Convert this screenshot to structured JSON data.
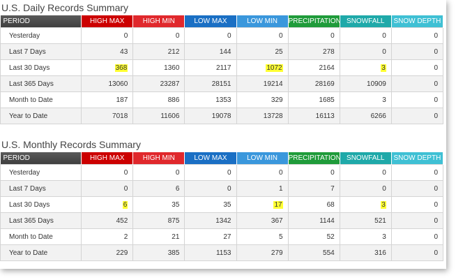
{
  "colors": {
    "period": "#4d4d4d",
    "high_max": "#cc0000",
    "high_min": "#e0282c",
    "low_max": "#1a6fc4",
    "low_min": "#3a97dc",
    "precipitation": "#1f9b3a",
    "snowfall": "#1fa9a9",
    "snow_depth": "#3fc0d4",
    "highlight": "#ffff33"
  },
  "headers": [
    "PERIOD",
    "HIGH MAX",
    "HIGH MIN",
    "LOW MAX",
    "LOW MIN",
    "PRECIPITATION",
    "SNOWFALL",
    "SNOW DEPTH"
  ],
  "daily": {
    "title": "U.S. Daily Records Summary",
    "rows": [
      {
        "label": "Yesterday",
        "values": [
          "0",
          "0",
          "0",
          "0",
          "0",
          "0",
          "0"
        ]
      },
      {
        "label": "Last 7 Days",
        "values": [
          "43",
          "212",
          "144",
          "25",
          "278",
          "0",
          "0"
        ]
      },
      {
        "label": "Last 30 Days",
        "values": [
          "368",
          "1360",
          "2117",
          "1072",
          "2164",
          "3",
          "0"
        ]
      },
      {
        "label": "Last 365 Days",
        "values": [
          "13060",
          "23287",
          "28151",
          "19214",
          "28169",
          "10909",
          "0"
        ]
      },
      {
        "label": "Month to Date",
        "values": [
          "187",
          "886",
          "1353",
          "329",
          "1685",
          "3",
          "0"
        ]
      },
      {
        "label": "Year to Date",
        "values": [
          "7018",
          "11606",
          "19078",
          "13728",
          "16113",
          "6266",
          "0"
        ]
      }
    ]
  },
  "monthly": {
    "title": "U.S. Monthly Records Summary",
    "rows": [
      {
        "label": "Yesterday",
        "values": [
          "0",
          "0",
          "0",
          "0",
          "0",
          "0",
          "0"
        ]
      },
      {
        "label": "Last 7 Days",
        "values": [
          "0",
          "6",
          "0",
          "1",
          "7",
          "0",
          "0"
        ]
      },
      {
        "label": "Last 30 Days",
        "values": [
          "6",
          "35",
          "35",
          "17",
          "68",
          "3",
          "0"
        ]
      },
      {
        "label": "Last 365 Days",
        "values": [
          "452",
          "875",
          "1342",
          "367",
          "1144",
          "521",
          "0"
        ]
      },
      {
        "label": "Month to Date",
        "values": [
          "2",
          "21",
          "27",
          "5",
          "52",
          "3",
          "0"
        ]
      },
      {
        "label": "Year to Date",
        "values": [
          "229",
          "385",
          "1153",
          "279",
          "554",
          "316",
          "0"
        ]
      }
    ]
  }
}
